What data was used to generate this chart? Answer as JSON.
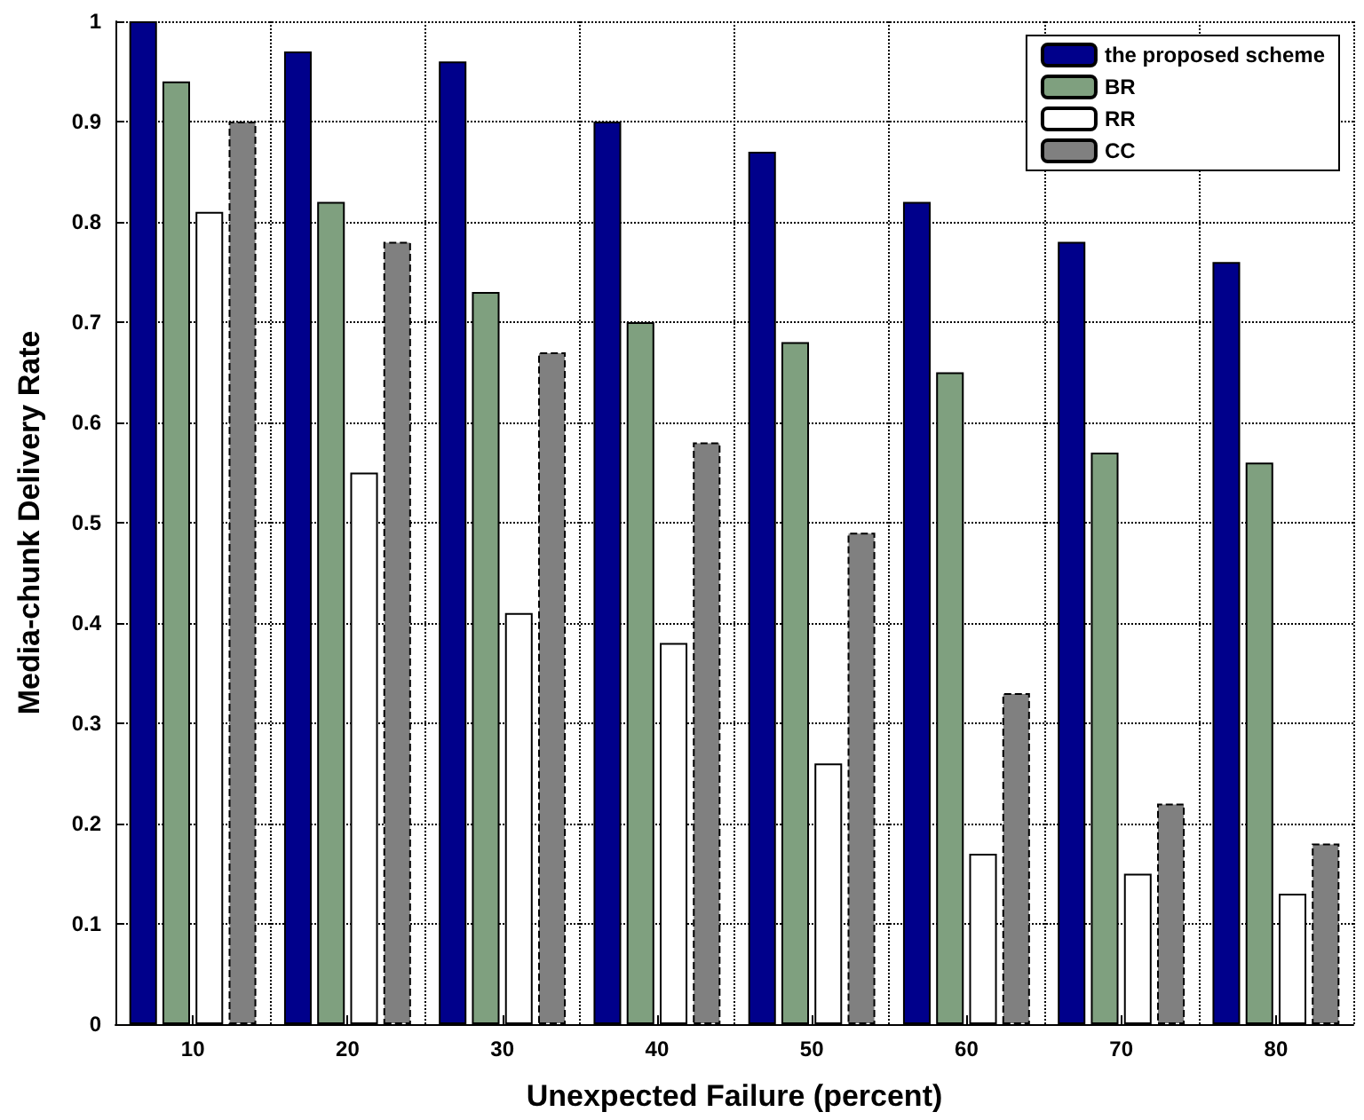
{
  "chart_data": {
    "type": "bar",
    "xlabel": "Unexpected Failure (percent)",
    "ylabel": "Media-chunk Delivery Rate",
    "categories": [
      "10",
      "20",
      "30",
      "40",
      "50",
      "60",
      "70",
      "80"
    ],
    "series": [
      {
        "name": "the proposed scheme",
        "color": "#00008b",
        "values": [
          1.0,
          0.97,
          0.96,
          0.9,
          0.87,
          0.82,
          0.78,
          0.76
        ]
      },
      {
        "name": "BR",
        "color": "#7fa07f",
        "values": [
          0.94,
          0.82,
          0.73,
          0.7,
          0.68,
          0.65,
          0.57,
          0.56
        ]
      },
      {
        "name": "RR",
        "color": "#ffffff",
        "values": [
          0.81,
          0.55,
          0.41,
          0.38,
          0.26,
          0.17,
          0.15,
          0.13
        ]
      },
      {
        "name": "CC",
        "color": "#808080",
        "line_style": "dashed",
        "values": [
          0.9,
          0.78,
          0.67,
          0.58,
          0.49,
          0.33,
          0.22,
          0.18
        ]
      }
    ],
    "ylim": [
      0,
      1
    ],
    "yticks": [
      0,
      0.1,
      0.2,
      0.3,
      0.4,
      0.5,
      0.6,
      0.7,
      0.8,
      0.9,
      1
    ],
    "grid": true,
    "legend": "top right"
  }
}
